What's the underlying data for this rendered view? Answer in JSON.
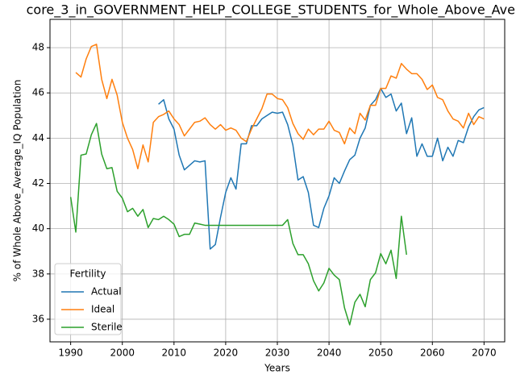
{
  "chart_data": {
    "type": "line",
    "title": "core_3_in_GOVERNMENT_HELP_COLLEGE_STUDENTS_for_Whole_Above_Avera",
    "xlabel": "Years",
    "ylabel": "% of Whole Above_Average_IQ Population",
    "legend_title": "Fertility",
    "legend_loc": "lower left",
    "grid": true,
    "xlim": [
      1986,
      2074
    ],
    "ylim": [
      35.0,
      49.25
    ],
    "xticks": [
      1990,
      2000,
      2010,
      2020,
      2030,
      2040,
      2050,
      2060,
      2070
    ],
    "yticks": [
      36,
      38,
      40,
      42,
      44,
      46,
      48
    ],
    "x": [
      1990,
      1991,
      1992,
      1993,
      1994,
      1995,
      1996,
      1997,
      1998,
      1999,
      2000,
      2001,
      2002,
      2003,
      2004,
      2005,
      2006,
      2007,
      2008,
      2009,
      2010,
      2011,
      2012,
      2013,
      2014,
      2015,
      2016,
      2017,
      2018,
      2019,
      2020,
      2021,
      2022,
      2023,
      2024,
      2025,
      2026,
      2027,
      2028,
      2029,
      2030,
      2031,
      2032,
      2033,
      2034,
      2035,
      2036,
      2037,
      2038,
      2039,
      2040,
      2041,
      2042,
      2043,
      2044,
      2045,
      2046,
      2047,
      2048,
      2049,
      2050,
      2051,
      2052,
      2053,
      2054,
      2055,
      2056,
      2057,
      2058,
      2059,
      2060,
      2061,
      2062,
      2063,
      2064,
      2065,
      2066,
      2067,
      2068,
      2069,
      2070
    ],
    "series": [
      {
        "name": "Actual",
        "color": "#1f77b4",
        "values": [
          null,
          null,
          null,
          null,
          null,
          null,
          null,
          null,
          null,
          null,
          null,
          null,
          null,
          null,
          null,
          null,
          null,
          45.5,
          45.7,
          44.85,
          44.4,
          43.25,
          42.6,
          42.8,
          43.0,
          42.95,
          43.0,
          39.1,
          39.3,
          40.5,
          41.6,
          42.25,
          41.75,
          43.75,
          43.75,
          44.55,
          44.55,
          44.85,
          45.0,
          45.15,
          45.1,
          45.15,
          44.6,
          43.7,
          42.15,
          42.3,
          41.6,
          40.15,
          40.05,
          40.9,
          41.45,
          42.25,
          42.0,
          42.55,
          43.05,
          43.25,
          44.0,
          44.45,
          45.45,
          45.7,
          46.2,
          45.8,
          45.95,
          45.2,
          45.55,
          44.2,
          44.9,
          43.2,
          43.75,
          43.2,
          43.2,
          44.0,
          43.0,
          43.6,
          43.2,
          43.9,
          43.8,
          44.5,
          44.95,
          45.25,
          45.35
        ]
      },
      {
        "name": "Ideal",
        "color": "#ff7f0e",
        "values": [
          null,
          46.9,
          46.7,
          47.5,
          48.05,
          48.15,
          46.6,
          45.75,
          46.6,
          45.9,
          44.7,
          44.0,
          43.5,
          42.65,
          43.7,
          42.95,
          44.7,
          44.95,
          45.05,
          45.2,
          44.85,
          44.6,
          44.1,
          44.4,
          44.7,
          44.75,
          44.9,
          44.6,
          44.4,
          44.6,
          44.35,
          44.45,
          44.35,
          44.0,
          43.85,
          44.4,
          44.85,
          45.3,
          45.95,
          45.95,
          45.75,
          45.7,
          45.35,
          44.65,
          44.2,
          43.95,
          44.4,
          44.15,
          44.4,
          44.4,
          44.75,
          44.35,
          44.25,
          43.75,
          44.45,
          44.2,
          45.1,
          44.8,
          45.45,
          45.45,
          46.2,
          46.2,
          46.75,
          46.65,
          47.3,
          47.05,
          46.85,
          46.85,
          46.6,
          46.15,
          46.35,
          45.8,
          45.7,
          45.2,
          44.85,
          44.75,
          44.45,
          45.1,
          44.6,
          44.95,
          44.85
        ]
      },
      {
        "name": "Sterile",
        "color": "#2ca02c",
        "values": [
          41.4,
          39.85,
          43.25,
          43.3,
          44.15,
          44.65,
          43.3,
          42.65,
          42.7,
          41.65,
          41.35,
          40.75,
          40.9,
          40.55,
          40.85,
          40.05,
          40.45,
          40.4,
          40.55,
          40.4,
          40.2,
          39.65,
          39.75,
          39.75,
          40.25,
          40.2,
          40.15,
          40.15,
          40.15,
          40.15,
          40.15,
          40.15,
          40.15,
          40.15,
          40.15,
          40.15,
          40.15,
          40.15,
          40.15,
          40.15,
          40.15,
          40.15,
          40.4,
          39.35,
          38.85,
          38.85,
          38.45,
          37.7,
          37.25,
          37.6,
          38.25,
          37.95,
          37.75,
          36.5,
          35.75,
          36.75,
          37.1,
          36.55,
          37.75,
          38.05,
          38.9,
          38.45,
          39.05,
          37.8,
          40.55,
          38.85,
          null,
          null,
          null,
          null,
          null,
          null,
          null,
          null,
          null,
          null,
          null,
          null,
          null,
          null,
          null
        ]
      }
    ]
  }
}
